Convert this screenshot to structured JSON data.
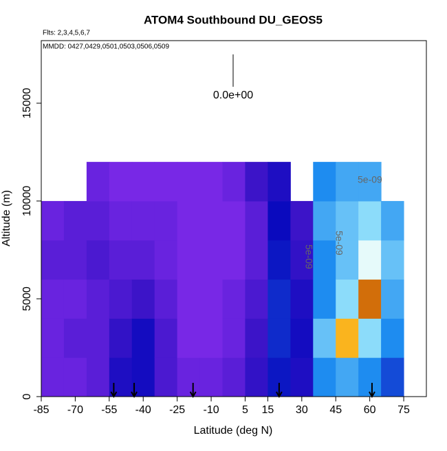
{
  "chart_data": {
    "type": "heatmap",
    "title": "ATOM4 Southbound DU_GEOS5",
    "flights": "Flts: 2,3,4,5,6,7",
    "dates": "MMDD: 0427,0429,0501,0503,0506,0509",
    "xlabel": "Latitude (deg N)",
    "ylabel": "Altitude (m)",
    "xlim": [
      -85,
      85
    ],
    "xticks": [
      -85,
      -70,
      -55,
      -40,
      -25,
      -10,
      5,
      15,
      30,
      45,
      60,
      75
    ],
    "ylim": [
      0,
      18200
    ],
    "yticks": [
      0,
      5000,
      10000,
      15000
    ],
    "x": [
      -80,
      -70,
      -60,
      -50,
      -40,
      -30,
      -20,
      -10,
      0,
      10,
      20,
      30,
      40,
      50,
      60,
      70
    ],
    "y": [
      1000,
      3000,
      5000,
      7000,
      9000,
      11000
    ],
    "z": [
      [
        2e-10,
        2e-10,
        2e-10,
        3e-10,
        2e-10,
        null
      ],
      [
        2e-10,
        3e-10,
        2e-10,
        3e-10,
        3e-10,
        null
      ],
      [
        3e-10,
        3e-10,
        3e-10,
        4e-10,
        3e-10,
        2e-10
      ],
      [
        8e-10,
        6e-10,
        4e-10,
        3e-10,
        2e-10,
        1e-10
      ],
      [
        9e-10,
        9e-10,
        5e-10,
        3e-10,
        2e-10,
        1e-10
      ],
      [
        4e-10,
        4e-10,
        3e-10,
        2e-10,
        2e-10,
        1e-10
      ],
      [
        2e-10,
        1e-10,
        1e-10,
        1e-10,
        1e-10,
        1e-10
      ],
      [
        2e-10,
        1e-10,
        1e-10,
        1e-10,
        1e-10,
        1e-10
      ],
      [
        3e-10,
        2e-10,
        2e-10,
        1e-10,
        1e-10,
        2e-10
      ],
      [
        6e-10,
        5e-10,
        4e-10,
        3e-10,
        3e-10,
        5e-10
      ],
      [
        1.2e-09,
        1.5e-09,
        1.5e-09,
        1.2e-09,
        1e-09,
        8e-10
      ],
      [
        8e-10,
        9e-10,
        8e-10,
        6e-10,
        5e-10,
        null
      ],
      [
        3e-09,
        5e-09,
        3e-09,
        3e-09,
        4e-09,
        3e-09
      ],
      [
        4e-09,
        1.2e-08,
        6e-09,
        5e-09,
        5e-09,
        4e-09
      ],
      [
        3e-09,
        6e-09,
        1.4e-08,
        9e-09,
        6e-09,
        4e-09
      ],
      [
        2e-09,
        3e-09,
        4e-09,
        5e-09,
        4e-09,
        null
      ]
    ],
    "scale_label": "0.0e+00",
    "contour_label": "5e-09",
    "flight_markers": [
      -53,
      -44,
      -18,
      20,
      61
    ]
  }
}
